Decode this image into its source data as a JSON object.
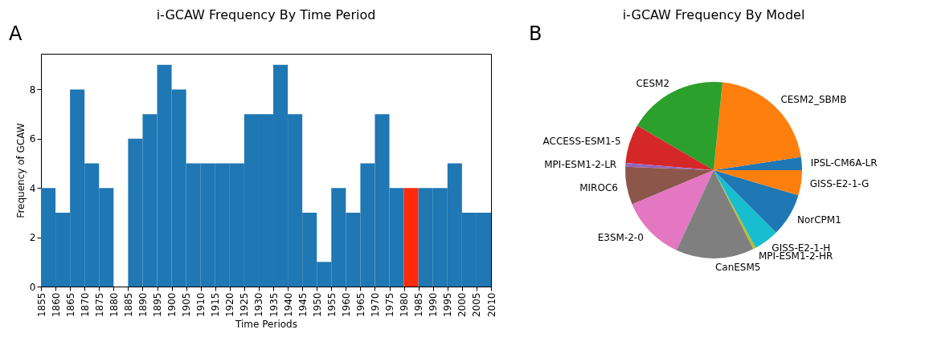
{
  "chart_data": [
    {
      "type": "histogram",
      "title": "i-GCAW Frequency By Time Period",
      "xlabel": "Time Periods",
      "ylabel": "Frequency of GCAW",
      "bins": [
        1855,
        1860,
        1865,
        1870,
        1875,
        1880,
        1885,
        1890,
        1895,
        1900,
        1905,
        1910,
        1915,
        1920,
        1925,
        1930,
        1935,
        1940,
        1945,
        1950,
        1955,
        1960,
        1965,
        1970,
        1975,
        1980,
        1985,
        1990,
        1995,
        2000,
        2005,
        2010
      ],
      "values": [
        4,
        3,
        8,
        5,
        4,
        0,
        6,
        7,
        9,
        8,
        5,
        5,
        5,
        5,
        7,
        7,
        9,
        7,
        3,
        1,
        4,
        3,
        5,
        7,
        4,
        4,
        4,
        4,
        5,
        3,
        3
      ],
      "colors": [
        "#1f77b4",
        "#1f77b4",
        "#1f77b4",
        "#1f77b4",
        "#1f77b4",
        "#1f77b4",
        "#1f77b4",
        "#1f77b4",
        "#1f77b4",
        "#1f77b4",
        "#1f77b4",
        "#1f77b4",
        "#1f77b4",
        "#1f77b4",
        "#1f77b4",
        "#1f77b4",
        "#1f77b4",
        "#1f77b4",
        "#1f77b4",
        "#1f77b4",
        "#1f77b4",
        "#1f77b4",
        "#1f77b4",
        "#1f77b4",
        "#1f77b4",
        "#ff2a0a",
        "#1f77b4",
        "#1f77b4",
        "#1f77b4",
        "#1f77b4",
        "#1f77b4"
      ],
      "xlim": [
        1855,
        2010
      ],
      "xticks": [
        1855,
        1860,
        1865,
        1870,
        1875,
        1880,
        1885,
        1890,
        1895,
        1900,
        1905,
        1910,
        1915,
        1920,
        1925,
        1930,
        1935,
        1940,
        1945,
        1950,
        1955,
        1960,
        1965,
        1970,
        1975,
        1980,
        1985,
        1990,
        1995,
        2000,
        2005,
        2010
      ],
      "ylim": [
        0,
        9.45
      ],
      "yticks": [
        0,
        2,
        4,
        6,
        8
      ],
      "grid": false,
      "annotations": [
        "A"
      ]
    },
    {
      "type": "pie",
      "title": "i-GCAW Frequency By Model",
      "categories": [
        "IPSL-CM6A-LR",
        "CESM2_SBMB",
        "CESM2",
        "ACCESS-ESM1-5",
        "MPI-ESM1-2-LR",
        "MIROC6",
        "E3SM-2-0",
        "CanESM5",
        "MPI-ESM1-2-HR",
        "GISS-E2-1-H",
        "NorCPM1",
        "GISS-E2-1-G"
      ],
      "values": [
        2.4,
        21.0,
        18.2,
        7.1,
        0.7,
        6.9,
        11.8,
        14.3,
        0.5,
        4.6,
        7.9,
        4.6
      ],
      "colors": [
        "#1f77b4",
        "#ff7f0e",
        "#2ca02c",
        "#d62728",
        "#9467bd",
        "#8c564b",
        "#e377c2",
        "#7f7f7f",
        "#bcbd22",
        "#17becf",
        "#1f77b4",
        "#ff7f0e"
      ],
      "annotations": [
        "B"
      ]
    }
  ]
}
